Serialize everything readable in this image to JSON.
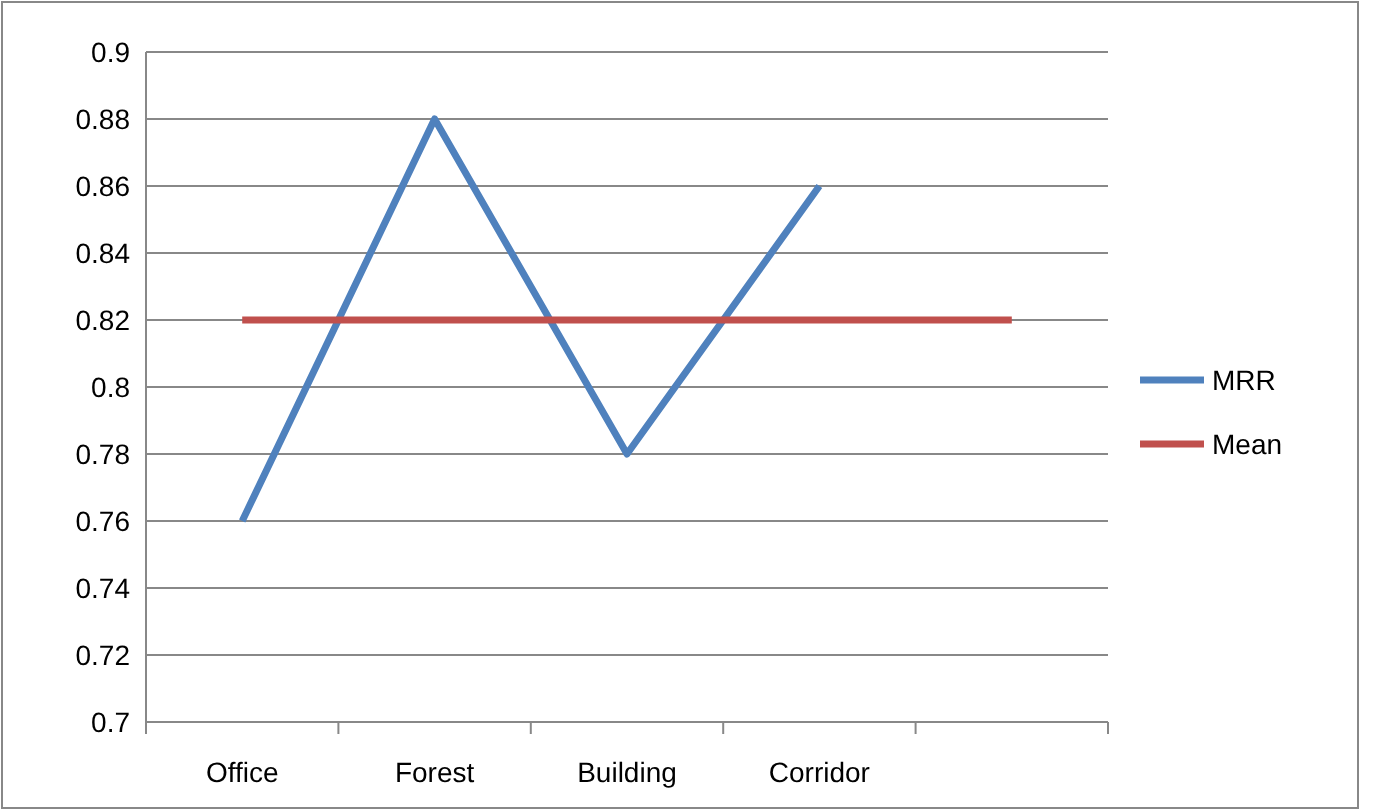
{
  "chart_data": {
    "type": "line",
    "categories": [
      "Office",
      "Forest",
      "Building",
      "Corridor",
      null
    ],
    "series": [
      {
        "name": "MRR",
        "color": "#4f81bd",
        "values": [
          0.76,
          0.88,
          0.78,
          0.86,
          null
        ]
      },
      {
        "name": "Mean",
        "color": "#c0504d",
        "values": [
          0.82,
          0.82,
          0.82,
          0.82,
          0.82
        ]
      }
    ],
    "ylim": [
      0.7,
      0.9
    ],
    "yticks": [
      0.7,
      0.72,
      0.74,
      0.76,
      0.78,
      0.8,
      0.82,
      0.84,
      0.86,
      0.88,
      0.9
    ],
    "grid": "y",
    "legend": "right",
    "marker": "none",
    "line_style": "solid"
  }
}
